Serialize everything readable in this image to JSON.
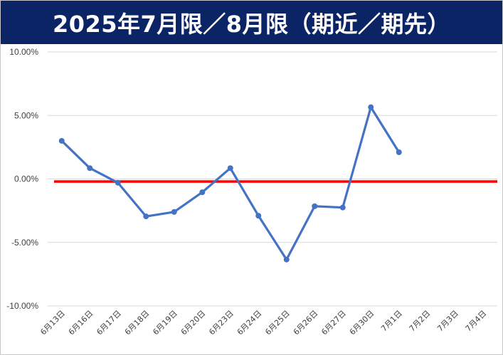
{
  "title": "2025年7月限／8月限（期近／期先）",
  "colors": {
    "title_background": "#0b2466",
    "title_text": "#ffffff",
    "series_line": "#4472c4",
    "zero_line": "#ff0000",
    "gridline": "#d9d9d9",
    "tick_text": "#404040"
  },
  "chart_data": {
    "type": "line",
    "title": "2025年7月限／8月限（期近／期先）",
    "xlabel": "",
    "ylabel": "",
    "categories": [
      "6月13日",
      "6月16日",
      "6月17日",
      "6月18日",
      "6月19日",
      "6月20日",
      "6月23日",
      "6月24日",
      "6月25日",
      "6月26日",
      "6月27日",
      "6月30日",
      "7月1日",
      "7月2日",
      "7月3日",
      "7月4日"
    ],
    "y_ticks": [
      "10.00%",
      "5.00%",
      "0.00%",
      "-5.00%",
      "-10.00%"
    ],
    "ylim": [
      -10,
      10
    ],
    "y_unit": "%",
    "grid": true,
    "legend": "none",
    "reference_line": {
      "y": -0.2
    },
    "series": [
      {
        "values": [
          3.0,
          0.85,
          -0.3,
          -2.95,
          -2.6,
          -1.05,
          0.85,
          -2.9,
          -6.35,
          -2.15,
          -2.25,
          5.65,
          2.1,
          null,
          null,
          null
        ]
      }
    ]
  }
}
